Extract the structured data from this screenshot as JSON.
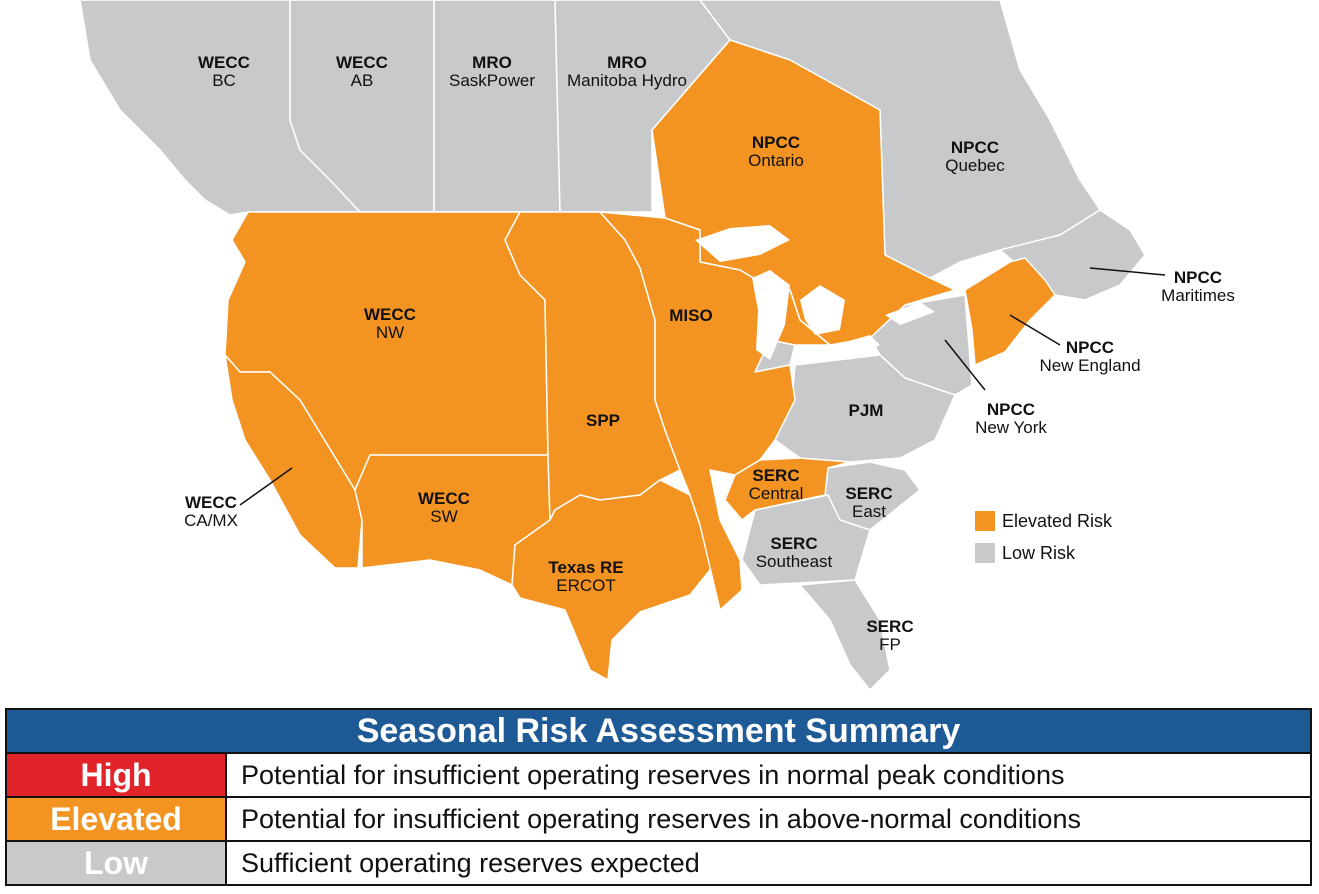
{
  "colors": {
    "elevated": "#f39321",
    "low": "#c8c9cb",
    "high": "#e0242a",
    "header": "#1e5a96",
    "border": "#ffffff"
  },
  "regions": [
    {
      "key": "wecc-bc",
      "code": "WECC",
      "name": "BC",
      "risk": "low"
    },
    {
      "key": "wecc-ab",
      "code": "WECC",
      "name": "AB",
      "risk": "low"
    },
    {
      "key": "mro-sask",
      "code": "MRO",
      "name": "SaskPower",
      "risk": "low"
    },
    {
      "key": "mro-manitoba",
      "code": "MRO",
      "name": "Manitoba Hydro",
      "risk": "low"
    },
    {
      "key": "npcc-ontario",
      "code": "NPCC",
      "name": "Ontario",
      "risk": "elevated"
    },
    {
      "key": "npcc-quebec",
      "code": "NPCC",
      "name": "Quebec",
      "risk": "low"
    },
    {
      "key": "npcc-maritimes",
      "code": "NPCC",
      "name": "Maritimes",
      "risk": "low"
    },
    {
      "key": "npcc-newengland",
      "code": "NPCC",
      "name": "New England",
      "risk": "elevated"
    },
    {
      "key": "npcc-newyork",
      "code": "NPCC",
      "name": "New York",
      "risk": "low"
    },
    {
      "key": "wecc-nw",
      "code": "WECC",
      "name": "NW",
      "risk": "elevated"
    },
    {
      "key": "miso",
      "code": "MISO",
      "name": "",
      "risk": "elevated"
    },
    {
      "key": "spp",
      "code": "SPP",
      "name": "",
      "risk": "elevated"
    },
    {
      "key": "pjm",
      "code": "PJM",
      "name": "",
      "risk": "low"
    },
    {
      "key": "wecc-camx",
      "code": "WECC",
      "name": "CA/MX",
      "risk": "elevated"
    },
    {
      "key": "wecc-sw",
      "code": "WECC",
      "name": "SW",
      "risk": "elevated"
    },
    {
      "key": "texas-re",
      "code": "Texas RE",
      "name": "ERCOT",
      "risk": "elevated"
    },
    {
      "key": "serc-central",
      "code": "SERC",
      "name": "Central",
      "risk": "elevated"
    },
    {
      "key": "serc-east",
      "code": "SERC",
      "name": "East",
      "risk": "low"
    },
    {
      "key": "serc-southeast",
      "code": "SERC",
      "name": "Southeast",
      "risk": "low"
    },
    {
      "key": "serc-fp",
      "code": "SERC",
      "name": "FP",
      "risk": "low"
    }
  ],
  "legend": {
    "elevated": "Elevated Risk",
    "low": "Low Risk"
  },
  "summary": {
    "title": "Seasonal Risk Assessment Summary",
    "rows": [
      {
        "level": "High",
        "description": "Potential for insufficient operating reserves in normal peak conditions"
      },
      {
        "level": "Elevated",
        "description": "Potential for insufficient operating reserves in above-normal conditions"
      },
      {
        "level": "Low",
        "description": "Sufficient operating reserves expected"
      }
    ]
  }
}
